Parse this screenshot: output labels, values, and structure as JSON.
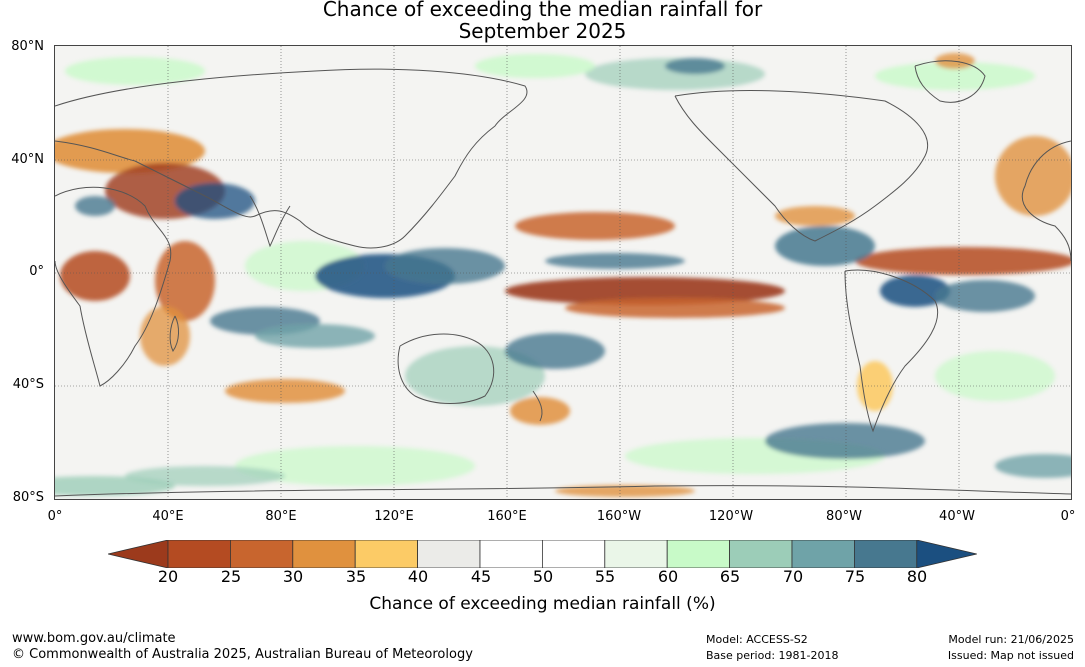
{
  "title": {
    "line1": "Chance of exceeding the median rainfall for",
    "line2": "September 2025"
  },
  "map": {
    "lat_labels": [
      "80°N",
      "40°N",
      "0°",
      "40°S",
      "80°S"
    ],
    "lon_labels": [
      "0°",
      "40°E",
      "80°E",
      "120°E",
      "160°E",
      "160°W",
      "120°W",
      "80°W",
      "40°W",
      "0°"
    ]
  },
  "colorbar": {
    "label": "Chance of exceeding median rainfall (%)",
    "ticks": [
      "20",
      "25",
      "30",
      "35",
      "40",
      "45",
      "50",
      "55",
      "60",
      "65",
      "70",
      "75",
      "80"
    ],
    "colors": [
      "#9c3a1c",
      "#b44b22",
      "#c8652e",
      "#e0913e",
      "#fccb66",
      "#ebebe8",
      "#ffffff",
      "#ffffff",
      "#eaf6e8",
      "#c8fac8",
      "#9ccdb8",
      "#6fa3a8",
      "#47788f",
      "#1b4f80"
    ]
  },
  "footer": {
    "website": "www.bom.gov.au/climate",
    "copyright": "© Commonwealth of Australia 2025, Australian Bureau of Meteorology",
    "model": "Model: ACCESS-S2",
    "base_period": "Base period: 1981-2018",
    "model_run": "Model run: 21/06/2025",
    "issued": "Issued: Map not issued"
  }
}
